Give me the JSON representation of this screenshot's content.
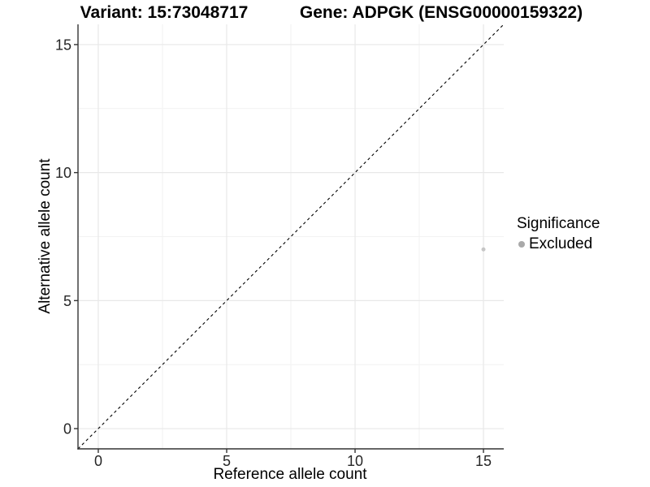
{
  "header": {
    "variant_title": "Variant: 15:73048717",
    "gene_title": "Gene: ADPGK (ENSG00000159322)"
  },
  "legend": {
    "title": "Significance",
    "items": [
      {
        "label": "Excluded",
        "marker": "circle-icon",
        "color": "#a9a9a9"
      }
    ]
  },
  "chart_data": {
    "type": "scatter",
    "xlabel": "Reference allele count",
    "ylabel": "Alternative allele count",
    "xlim": [
      -0.79,
      15.79
    ],
    "ylim": [
      -0.79,
      15.79
    ],
    "x_ticks": [
      0,
      5,
      10,
      15
    ],
    "y_ticks": [
      0,
      5,
      10,
      15
    ],
    "x_minor_ticks": [
      2.5,
      7.5,
      12.5
    ],
    "y_minor_ticks": [
      2.5,
      7.5,
      12.5
    ],
    "grid": "major+minor",
    "legend_position": "right",
    "series": [
      {
        "name": "Excluded",
        "color": "#c6c6c6",
        "marker_radius": 2.5,
        "points": [
          {
            "x": 15,
            "y": 7
          }
        ]
      }
    ],
    "reference_line": {
      "type": "identity",
      "slope": 1,
      "intercept": 0,
      "style": "dashed",
      "color": "#000000"
    }
  },
  "colors": {
    "major_grid": "#e8e8e8",
    "minor_grid": "#f2f2f2",
    "axis": "#333333",
    "tick_label": "#262626"
  }
}
